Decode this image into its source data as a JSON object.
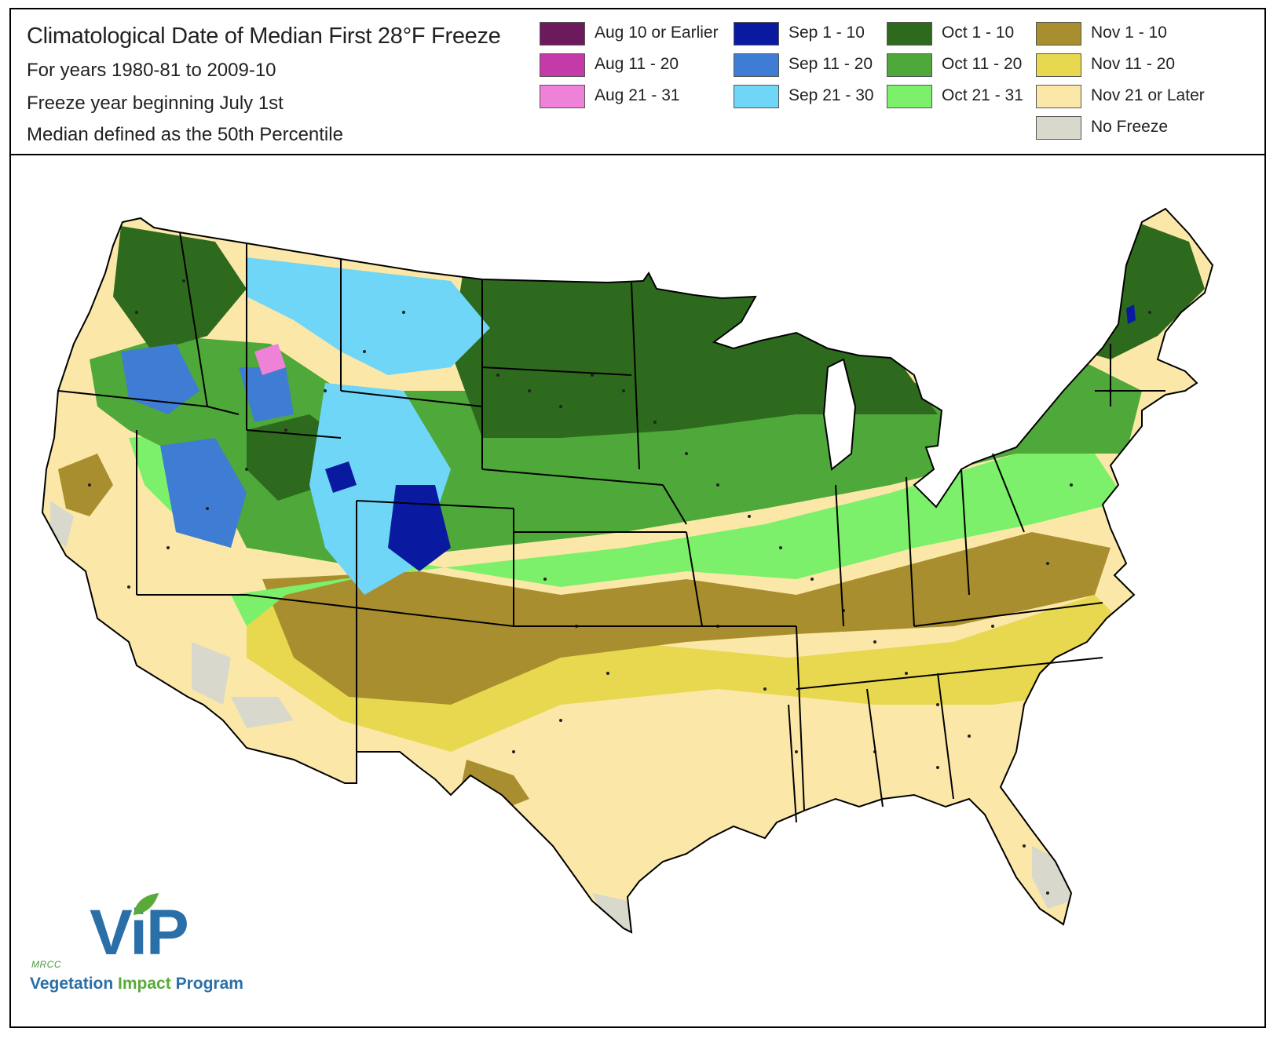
{
  "header": {
    "title": "Climatological Date of Median First 28°F Freeze",
    "years": "For years 1980-81 to 2009-10",
    "freeze_year": "Freeze year beginning July 1st",
    "median_def": "Median defined as the 50th Percentile"
  },
  "legend": [
    {
      "label": "Aug 10 or Earlier",
      "color": "#6b1a5c"
    },
    {
      "label": "Aug 11 - 20",
      "color": "#c43aa8"
    },
    {
      "label": "Aug 21 - 31",
      "color": "#ee82d8"
    },
    {
      "label": "Sep 1 - 10",
      "color": "#0a1aa0"
    },
    {
      "label": "Sep 11 - 20",
      "color": "#3f7cd4"
    },
    {
      "label": "Sep 21 - 30",
      "color": "#6fd6f8"
    },
    {
      "label": "Oct 1 - 10",
      "color": "#2e6a1e"
    },
    {
      "label": "Oct 11 - 20",
      "color": "#4ea83a"
    },
    {
      "label": "Oct 21 - 31",
      "color": "#7cf06a"
    },
    {
      "label": "Nov 1 - 10",
      "color": "#a88e2e"
    },
    {
      "label": "Nov 11 - 20",
      "color": "#e8d850"
    },
    {
      "label": "Nov 21 or Later",
      "color": "#fbe8a8"
    },
    {
      "label": "No Freeze",
      "color": "#d8d8cc"
    }
  ],
  "logo": {
    "acronym": "ViP",
    "org": "MRCC",
    "name_part1": "Vegetation",
    "name_part2": "Impact",
    "name_part3": "Program"
  }
}
